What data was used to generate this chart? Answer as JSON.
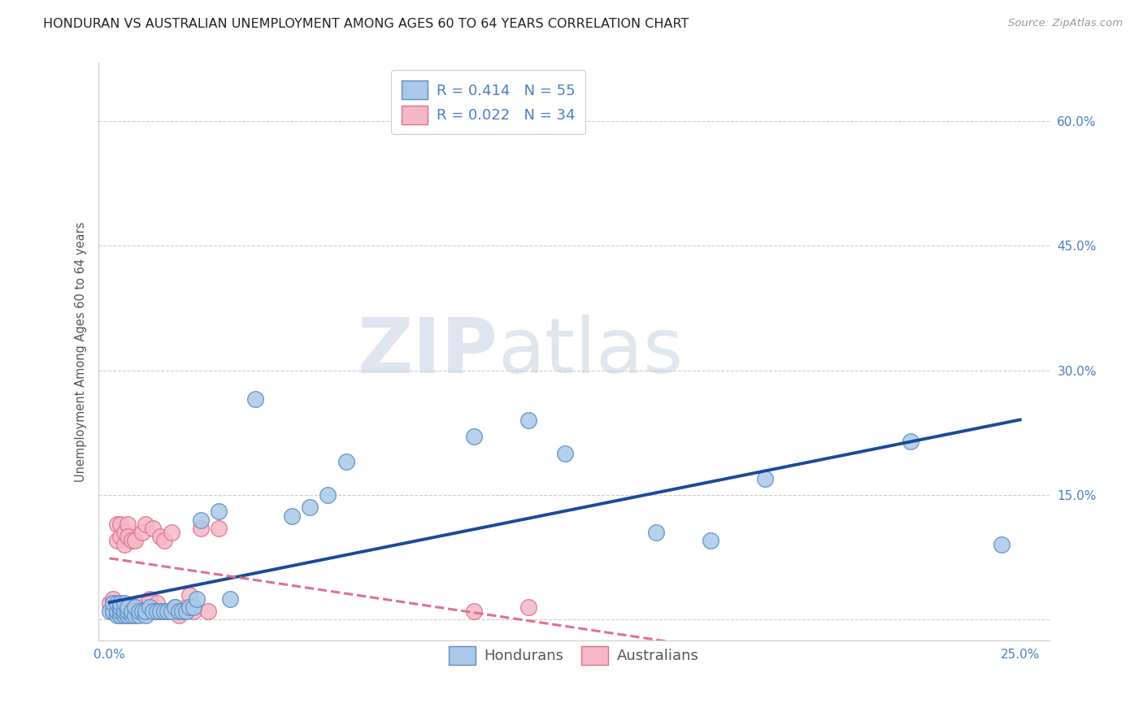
{
  "title": "HONDURAN VS AUSTRALIAN UNEMPLOYMENT AMONG AGES 60 TO 64 YEARS CORRELATION CHART",
  "source": "Source: ZipAtlas.com",
  "ylabel": "Unemployment Among Ages 60 to 64 years",
  "xlim": [
    -0.003,
    0.258
  ],
  "ylim": [
    -0.025,
    0.67
  ],
  "xticks": [
    0.0,
    0.05,
    0.1,
    0.15,
    0.2,
    0.25
  ],
  "yticks": [
    0.0,
    0.15,
    0.3,
    0.45,
    0.6
  ],
  "ytick_labels": [
    "",
    "15.0%",
    "30.0%",
    "45.0%",
    "60.0%"
  ],
  "xtick_labels": [
    "0.0%",
    "",
    "",
    "",
    "",
    "25.0%"
  ],
  "honduran_color": "#aac9e8",
  "honduran_edge": "#5b8ec4",
  "australian_color": "#f5b8c8",
  "australian_edge": "#e0708a",
  "trend_honduran_color": "#1a4a9a",
  "trend_australian_color": "#e07090",
  "legend_R_honduran": "R = 0.414",
  "legend_N_honduran": "N = 55",
  "legend_R_australian": "R = 0.022",
  "legend_N_australian": "N = 34",
  "honduran_x": [
    0.0,
    0.001,
    0.001,
    0.002,
    0.002,
    0.002,
    0.003,
    0.003,
    0.003,
    0.003,
    0.004,
    0.004,
    0.004,
    0.005,
    0.005,
    0.005,
    0.006,
    0.006,
    0.007,
    0.007,
    0.008,
    0.008,
    0.009,
    0.01,
    0.01,
    0.011,
    0.012,
    0.013,
    0.014,
    0.015,
    0.016,
    0.017,
    0.018,
    0.019,
    0.02,
    0.021,
    0.022,
    0.023,
    0.024,
    0.025,
    0.03,
    0.033,
    0.04,
    0.05,
    0.055,
    0.06,
    0.065,
    0.1,
    0.115,
    0.125,
    0.15,
    0.165,
    0.18,
    0.22,
    0.245
  ],
  "honduran_y": [
    0.01,
    0.01,
    0.02,
    0.005,
    0.01,
    0.02,
    0.005,
    0.01,
    0.015,
    0.02,
    0.005,
    0.01,
    0.02,
    0.005,
    0.01,
    0.015,
    0.005,
    0.01,
    0.005,
    0.015,
    0.005,
    0.01,
    0.01,
    0.005,
    0.01,
    0.015,
    0.01,
    0.01,
    0.01,
    0.01,
    0.01,
    0.01,
    0.015,
    0.01,
    0.01,
    0.01,
    0.015,
    0.015,
    0.025,
    0.12,
    0.13,
    0.025,
    0.265,
    0.125,
    0.135,
    0.15,
    0.19,
    0.22,
    0.24,
    0.2,
    0.105,
    0.095,
    0.17,
    0.215,
    0.09
  ],
  "australian_x": [
    0.0,
    0.001,
    0.001,
    0.002,
    0.002,
    0.003,
    0.003,
    0.004,
    0.004,
    0.005,
    0.005,
    0.006,
    0.007,
    0.008,
    0.009,
    0.01,
    0.011,
    0.012,
    0.013,
    0.014,
    0.015,
    0.016,
    0.017,
    0.018,
    0.019,
    0.02,
    0.021,
    0.022,
    0.023,
    0.025,
    0.027,
    0.03,
    0.1,
    0.115
  ],
  "australian_y": [
    0.02,
    0.01,
    0.025,
    0.095,
    0.115,
    0.1,
    0.115,
    0.105,
    0.09,
    0.115,
    0.1,
    0.095,
    0.095,
    0.02,
    0.105,
    0.115,
    0.025,
    0.11,
    0.02,
    0.1,
    0.095,
    0.01,
    0.105,
    0.015,
    0.005,
    0.01,
    0.015,
    0.03,
    0.01,
    0.11,
    0.01,
    0.11,
    0.01,
    0.015
  ],
  "background_color": "#ffffff",
  "watermark_zip": "ZIP",
  "watermark_atlas": "atlas",
  "title_fontsize": 11.5,
  "label_fontsize": 10.5,
  "tick_fontsize": 11,
  "legend_fontsize": 13,
  "source_fontsize": 9.5
}
